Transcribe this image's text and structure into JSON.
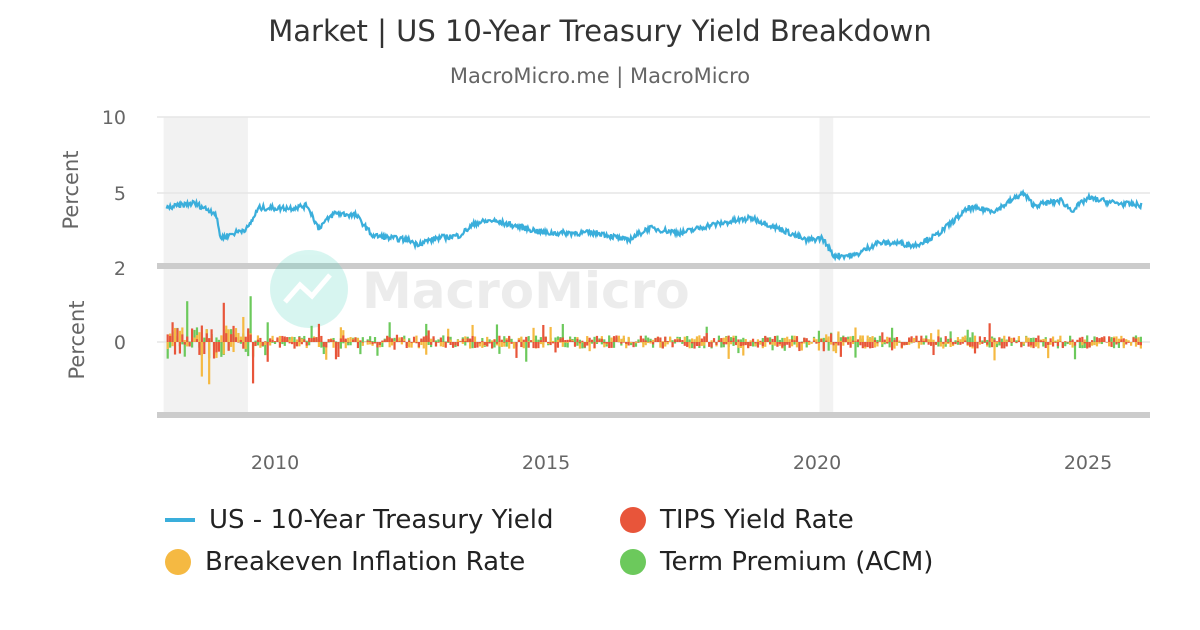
{
  "title": "Market | US 10-Year Treasury Yield Breakdown",
  "subtitle": "MacroMicro.me | MacroMicro",
  "watermark": "MacroMicro",
  "chart_data": [
    {
      "type": "line",
      "ylabel": "Percent",
      "y_ticks": [
        "10",
        "5",
        "2"
      ],
      "grid": true,
      "shaded_periods": [
        [
          2008.0,
          2009.5
        ],
        [
          2020.1,
          2020.3
        ]
      ],
      "series": [
        {
          "name": "US - 10-Year Treasury Yield",
          "color": "#3aaedb",
          "x": [
            2008.0,
            2008.5,
            2008.9,
            2009.0,
            2009.5,
            2009.7,
            2010.3,
            2010.6,
            2010.8,
            2011.1,
            2011.5,
            2011.8,
            2012.5,
            2012.6,
            2013.0,
            2013.4,
            2013.7,
            2014.0,
            2015.0,
            2015.5,
            2016.0,
            2016.5,
            2016.9,
            2017.5,
            2018.0,
            2018.8,
            2019.5,
            2019.8,
            2020.1,
            2020.3,
            2020.7,
            2021.1,
            2021.5,
            2021.8,
            2022.2,
            2022.8,
            2023.3,
            2023.8,
            2024.0,
            2024.5,
            2024.7,
            2025.0,
            2025.5,
            2026.0
          ],
          "y": [
            4.4,
            4.6,
            4.2,
            3.2,
            3.6,
            4.4,
            4.4,
            4.5,
            3.6,
            4.2,
            4.1,
            3.3,
            3.1,
            2.95,
            3.2,
            3.3,
            3.8,
            3.9,
            3.4,
            3.4,
            3.4,
            3.1,
            3.6,
            3.4,
            3.7,
            4.0,
            3.4,
            3.1,
            3.2,
            2.5,
            2.5,
            3.0,
            3.0,
            2.9,
            3.3,
            4.4,
            4.3,
            5.0,
            4.5,
            4.7,
            4.3,
            4.8,
            4.6,
            4.5
          ]
        }
      ]
    },
    {
      "type": "bar",
      "ylabel": "Percent",
      "y_ticks": [
        "0"
      ],
      "x_ticks": [
        "2010",
        "2015",
        "2020",
        "2025"
      ],
      "series": [
        {
          "name": "TIPS Yield Rate",
          "color": "#e8553a"
        },
        {
          "name": "Breakeven Inflation Rate",
          "color": "#f5b942"
        },
        {
          "name": "Term Premium (ACM)",
          "color": "#6cc95c"
        }
      ]
    }
  ],
  "legend": [
    {
      "label": "US - 10-Year Treasury Yield",
      "color": "#3aaedb",
      "marker": "line"
    },
    {
      "label": "TIPS Yield Rate",
      "color": "#e8553a",
      "marker": "dot"
    },
    {
      "label": "Breakeven Inflation Rate",
      "color": "#f5b942",
      "marker": "dot"
    },
    {
      "label": "Term Premium (ACM)",
      "color": "#6cc95c",
      "marker": "dot"
    }
  ]
}
